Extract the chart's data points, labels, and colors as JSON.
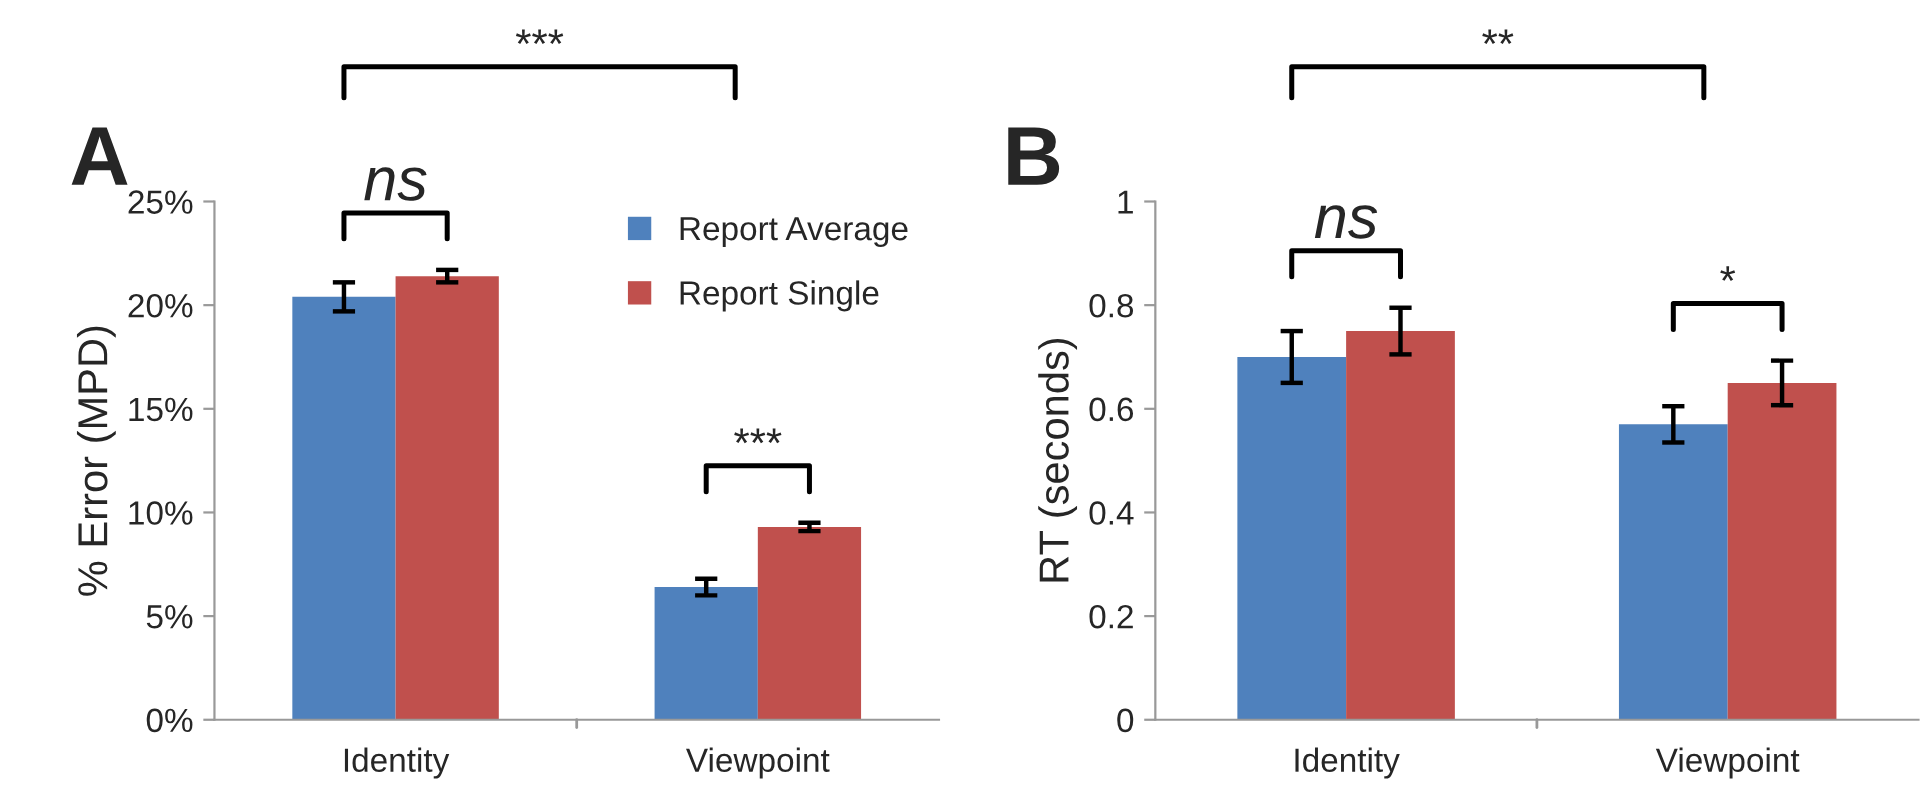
{
  "chart_data": [
    {
      "type": "bar",
      "title": "A",
      "ylabel": "% Error (MPD)",
      "categories": [
        "Identity",
        "Viewpoint"
      ],
      "series": [
        {
          "name": "Report Average",
          "color": "#4f81bd",
          "values": [
            20.4,
            6.4
          ],
          "errors": [
            0.7,
            0.4
          ]
        },
        {
          "name": "Report Single",
          "color": "#c0504d",
          "values": [
            21.4,
            9.3
          ],
          "errors": [
            0.3,
            0.2
          ]
        }
      ],
      "ylim": [
        0,
        25
      ],
      "yticks": [
        {
          "value": 0,
          "label": "0%"
        },
        {
          "value": 5,
          "label": "5%"
        },
        {
          "value": 10,
          "label": "10%"
        },
        {
          "value": 15,
          "label": "15%"
        },
        {
          "value": 20,
          "label": "20%"
        },
        {
          "value": 25,
          "label": "25%"
        }
      ],
      "grid": false,
      "legend": "top right",
      "annotations": [
        "***",
        "ns",
        "***"
      ]
    },
    {
      "type": "bar",
      "title": "B",
      "ylabel": "RT (seconds)",
      "categories": [
        "Identity",
        "Viewpoint"
      ],
      "series": [
        {
          "color": "#4f81bd",
          "values": [
            0.7,
            0.57
          ],
          "errors": [
            0.05,
            0.035
          ]
        },
        {
          "color": "#c0504d",
          "values": [
            0.75,
            0.65
          ],
          "errors": [
            0.045,
            0.043
          ]
        }
      ],
      "ylim": [
        0,
        1
      ],
      "yticks": [
        0,
        0.2,
        0.4,
        0.6,
        0.8,
        1
      ],
      "grid": false,
      "legend": false,
      "annotations": [
        "**",
        "ns",
        "*"
      ]
    }
  ]
}
